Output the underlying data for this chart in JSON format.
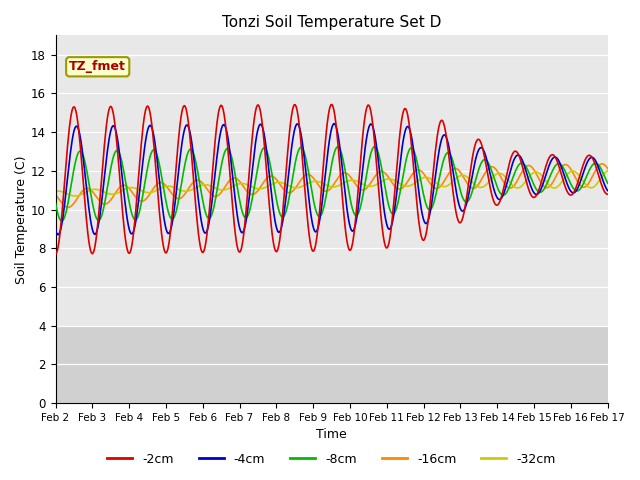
{
  "title": "Tonzi Soil Temperature Set D",
  "xlabel": "Time",
  "ylabel": "Soil Temperature (C)",
  "ylim": [
    0,
    19
  ],
  "yticks": [
    0,
    2,
    4,
    6,
    8,
    10,
    12,
    14,
    16,
    18
  ],
  "xtick_labels": [
    "Feb 2",
    "Feb 3",
    "Feb 4",
    "Feb 5",
    "Feb 6",
    "Feb 7",
    "Feb 8",
    "Feb 9",
    "Feb 10",
    "Feb 11",
    "Feb 12",
    "Feb 13",
    "Feb 14",
    "Feb 15",
    "Feb 16",
    "Feb 17"
  ],
  "series_colors": [
    "#dd0000",
    "#0000cc",
    "#00bb00",
    "#ff8800",
    "#cccc00"
  ],
  "series_labels": [
    "-2cm",
    "-4cm",
    "-8cm",
    "-16cm",
    "-32cm"
  ],
  "annotation_text": "TZ_fmet",
  "annotation_color": "#aa0000",
  "annotation_bg": "#ffffcc",
  "annotation_border": "#999900",
  "bg_upper": "#e8e8e8",
  "bg_lower": "#d0d0d0",
  "grid_color": "#ffffff",
  "n_points": 600
}
